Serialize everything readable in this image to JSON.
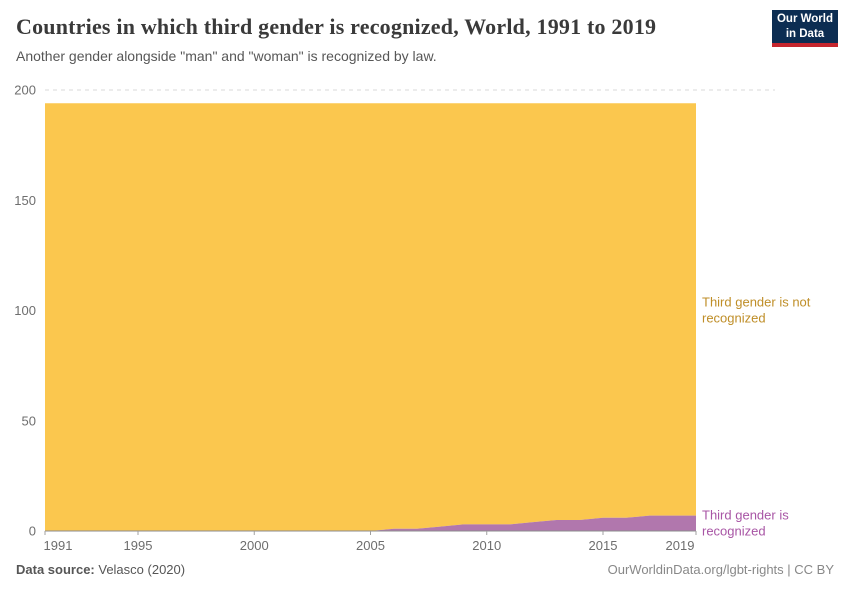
{
  "header": {
    "title": "Countries in which third gender is recognized, World, 1991 to 2019",
    "subtitle": "Another gender alongside \"man\" and \"woman\" is recognized by law."
  },
  "logo": {
    "line1": "Our World",
    "line2": "in Data",
    "background": "#0c2d52",
    "stripe": "#c5262e"
  },
  "chart_data": {
    "type": "area",
    "stacked": true,
    "title": "Countries in which third gender is recognized, World, 1991 to 2019",
    "x": [
      1991,
      1992,
      1993,
      1994,
      1995,
      1996,
      1997,
      1998,
      1999,
      2000,
      2001,
      2002,
      2003,
      2004,
      2005,
      2006,
      2007,
      2008,
      2009,
      2010,
      2011,
      2012,
      2013,
      2014,
      2015,
      2016,
      2017,
      2018,
      2019
    ],
    "series": [
      {
        "name": "Third gender is recognized",
        "color": "#b177ad",
        "label_color": "#a855a5",
        "values": [
          0,
          0,
          0,
          0,
          0,
          0,
          0,
          0,
          0,
          0,
          0,
          0,
          0,
          0,
          0,
          1,
          1,
          2,
          3,
          3,
          3,
          4,
          5,
          5,
          6,
          6,
          7,
          7,
          7
        ]
      },
      {
        "name": "Third gender is not recognized",
        "color": "#fbc74e",
        "label_color": "#bf8e28",
        "values": [
          194,
          194,
          194,
          194,
          194,
          194,
          194,
          194,
          194,
          194,
          194,
          194,
          194,
          194,
          194,
          193,
          193,
          192,
          191,
          191,
          191,
          190,
          189,
          189,
          188,
          188,
          187,
          187,
          187
        ]
      }
    ],
    "ylim": [
      0,
      200
    ],
    "yticks": [
      0,
      50,
      100,
      150,
      200
    ],
    "xticks": [
      1991,
      1995,
      2000,
      2005,
      2010,
      2015,
      2019
    ],
    "grid": "horizontal-dashed",
    "grid_color": "#d9d9d9",
    "axis_color": "#8b8b8d",
    "tick_text_color": "#6e6e6e",
    "legend_position": "right-edge-labels"
  },
  "annotations": {
    "not_recognized_label": [
      "Third gender is not",
      "recognized"
    ],
    "recognized_label": [
      "Third gender is",
      "recognized"
    ]
  },
  "footer": {
    "source_label": "Data source:",
    "source_value": " Velasco (2020)",
    "right": "OurWorldinData.org/lgbt-rights | CC BY"
  }
}
